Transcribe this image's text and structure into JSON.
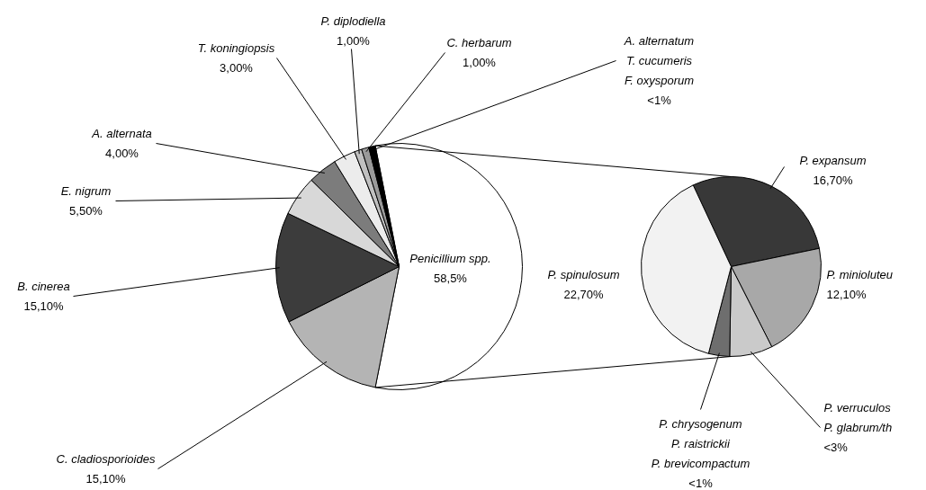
{
  "chart_data": [
    {
      "type": "pie",
      "categories": [
        "Penicillium spp.",
        "C. cladiosporioides",
        "B. cinerea",
        "E. nigrum",
        "A. alternata",
        "T. koningiopsis",
        "P. diplodiella",
        "C. herbarum",
        "A. alternatum\nT. cucumeris\nF. oxysporum"
      ],
      "values": [
        58.5,
        15.1,
        15.1,
        5.5,
        4.0,
        3.0,
        1.0,
        1.0,
        0.9
      ],
      "value_labels": [
        "58,5%",
        "15,10%",
        "15,10%",
        "5,50%",
        "4,00%",
        "3,00%",
        "1,00%",
        "1,00%",
        "<1%"
      ],
      "colors": [
        "#ffffff",
        "#b4b4b4",
        "#3c3c3c",
        "#d8d8d8",
        "#7c7c7c",
        "#ececec",
        "#c0c0c0",
        "#9a9a9a",
        "#000000"
      ]
    },
    {
      "type": "pie",
      "categories": [
        "P. expansum",
        "P. minioluteu",
        "P. verruculos\nP. glabrum/th",
        "P. chrysogenum\nP. raistrickii\nP. brevicompactum",
        "P. spinulosum"
      ],
      "values": [
        16.7,
        12.1,
        4.5,
        2.2,
        22.7
      ],
      "value_labels": [
        "16,70%",
        "12,10%",
        "<3%",
        "<1%",
        "22,70%"
      ],
      "colors": [
        "#383838",
        "#a8a8a8",
        "#cacaca",
        "#6e6e6e",
        "#f2f2f2"
      ]
    }
  ]
}
